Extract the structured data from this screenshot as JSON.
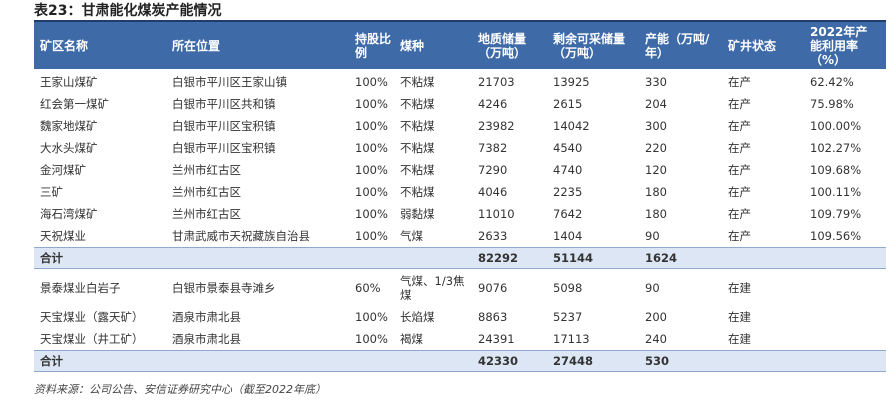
{
  "title": "表23：甘肃能化煤炭产能情况",
  "table": {
    "header": [
      "矿区名称",
      "所在位置",
      "持股比例",
      "煤种",
      "地质储量（万吨）",
      "剩余可采储量（万吨）",
      "产能（万吨/年）",
      "矿井状态",
      "2022年产能利用率（%）"
    ],
    "groups": [
      {
        "rows": [
          [
            "王家山煤矿",
            "白银市平川区王家山镇",
            "100%",
            "不粘煤",
            21703,
            13925,
            330,
            "在产",
            "62.42%"
          ],
          [
            "红会第一煤矿",
            "白银市平川区共和镇",
            "100%",
            "不粘煤",
            4246,
            2615,
            204,
            "在产",
            "75.98%"
          ],
          [
            "魏家地煤矿",
            "白银市平川区宝积镇",
            "100%",
            "不粘煤",
            23982,
            14042,
            300,
            "在产",
            "100.00%"
          ],
          [
            "大水头煤矿",
            "白银市平川区宝积镇",
            "100%",
            "不粘煤",
            7382,
            4540,
            220,
            "在产",
            "102.27%"
          ],
          [
            "金河煤矿",
            "兰州市红古区",
            "100%",
            "不粘煤",
            7290,
            4740,
            120,
            "在产",
            "109.68%"
          ],
          [
            "三矿",
            "兰州市红古区",
            "100%",
            "不粘煤",
            4046,
            2235,
            180,
            "在产",
            "100.11%"
          ],
          [
            "海石湾煤矿",
            "兰州市红古区",
            "100%",
            "弱黏煤",
            11010,
            7642,
            180,
            "在产",
            "109.79%"
          ],
          [
            "天祝煤业",
            "甘肃武威市天祝藏族自治县",
            "100%",
            "气煤",
            2633,
            1404,
            90,
            "在产",
            "109.56%"
          ]
        ],
        "total": {
          "label": "合计",
          "reserve": 82292,
          "remaining": 51144,
          "capacity": 1624
        }
      },
      {
        "rows": [
          [
            "景泰煤业白岩子",
            "白银市景泰县寺滩乡",
            "60%",
            "气煤、1/3焦煤",
            9076,
            5098,
            90,
            "在建"
          ],
          [
            "天宝煤业（露天矿）",
            "酒泉市肃北县",
            "100%",
            "长焰煤",
            8863,
            5237,
            200,
            "在建"
          ],
          [
            "天宝煤业（井工矿）",
            "酒泉市肃北县",
            "100%",
            "褐煤",
            24391,
            17113,
            240,
            "在建"
          ]
        ],
        "total": {
          "label": "合计",
          "reserve": 42330,
          "remaining": 27448,
          "capacity": 530
        }
      }
    ]
  },
  "source": "资料来源：公司公告、安信证券研究中心（截至2022年底）"
}
